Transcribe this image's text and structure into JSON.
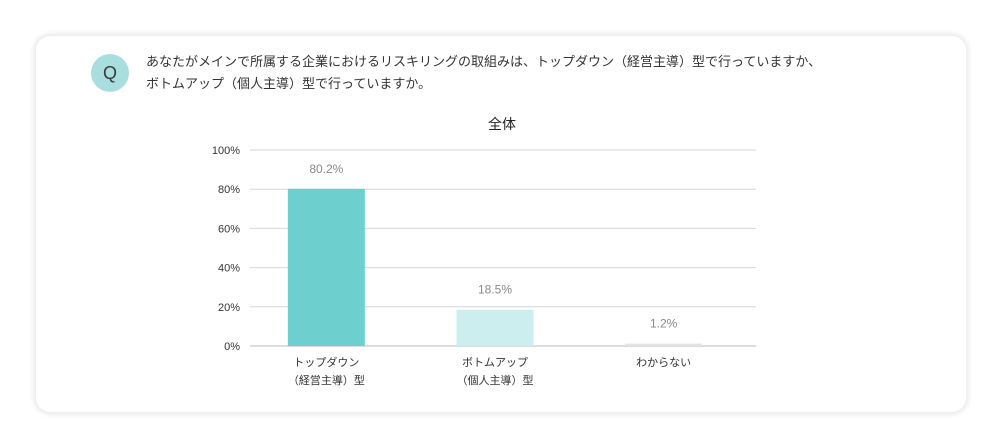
{
  "question": {
    "badge": "Q",
    "line1": "あなたがメインで所属する企業におけるリスキリングの取組みは、トップダウン（経営主導）型で行っていますか、",
    "line2": "ボトムアップ（個人主導）型で行っていますか。"
  },
  "chart_data": {
    "type": "bar",
    "title": "全体",
    "categories": [
      [
        "トップダウン",
        "（経営主導）型"
      ],
      [
        "ボトムアップ",
        "（個人主導）型"
      ],
      [
        "わからない"
      ]
    ],
    "values": [
      80.2,
      18.5,
      1.2
    ],
    "data_labels": [
      "80.2%",
      "18.5%",
      "1.2%"
    ],
    "colors": [
      "#6ecfcf",
      "#cdeeee",
      "#e3e3e3"
    ],
    "ylim": [
      0,
      100
    ],
    "yticks": [
      0,
      20,
      40,
      60,
      80,
      100
    ],
    "ytick_labels": [
      "0%",
      "20%",
      "40%",
      "60%",
      "80%",
      "100%"
    ],
    "grid": true,
    "legend": "none"
  }
}
